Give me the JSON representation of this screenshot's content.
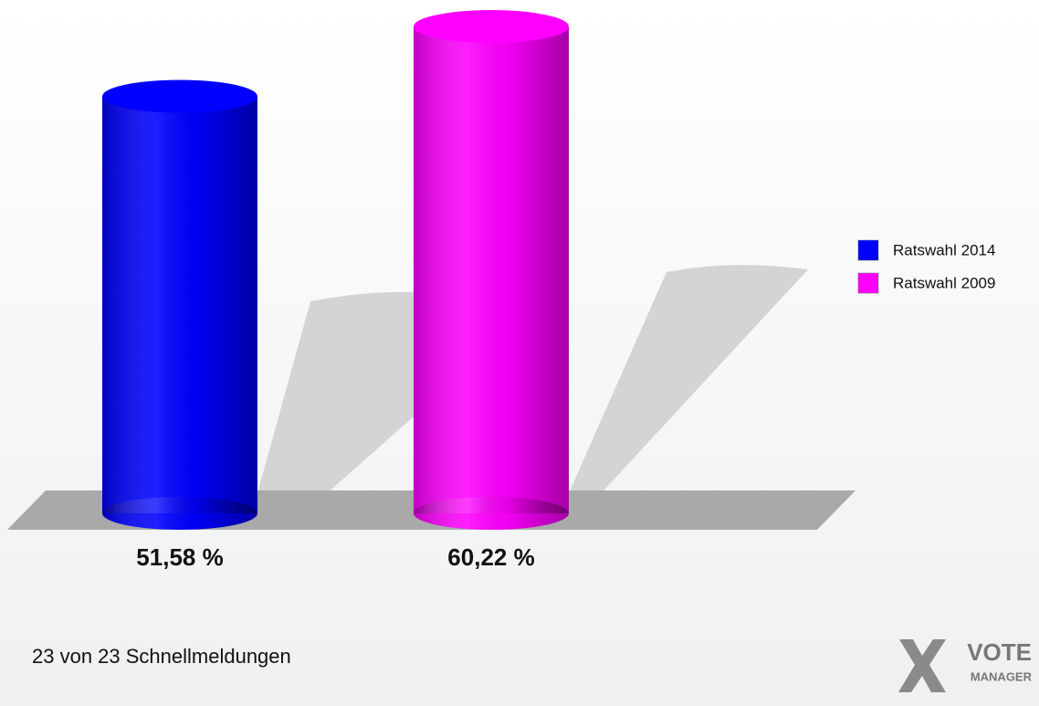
{
  "chart_data": {
    "type": "cylinder_bar",
    "series": [
      {
        "name": "Ratswahl 2014",
        "color": "#0000ff",
        "values": [
          51.58
        ],
        "value_labels": [
          "51,58 %"
        ]
      },
      {
        "name": "Ratswahl 2009",
        "color": "#ff00ff",
        "values": [
          60.22
        ],
        "value_labels": [
          "60,22 %"
        ]
      }
    ],
    "footnote": "23 von 23 Schnellmeldungen"
  },
  "logo": {
    "line1": "VOTE",
    "line2": "MANAGER"
  }
}
